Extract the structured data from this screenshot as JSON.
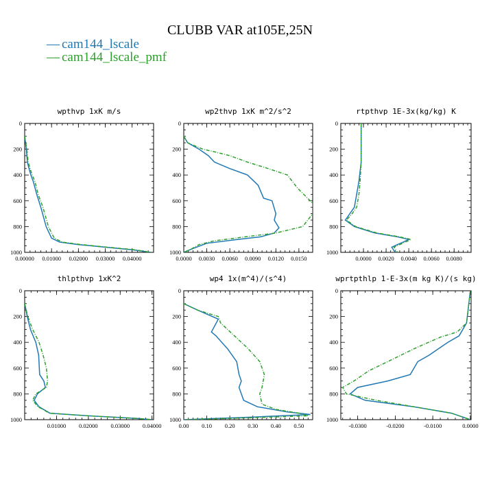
{
  "title": "CLUBB VAR at105E,25N",
  "colors": {
    "blue": "#1f77b4",
    "green": "#2ca02c"
  },
  "legend": [
    {
      "marker": "—",
      "label": "cam144_lscale",
      "color": "#1f77b4",
      "dashed": false
    },
    {
      "marker": "—",
      "label": "cam144_lscale_pmf",
      "color": "#2ca02c",
      "dashed": true
    }
  ],
  "chart_data": [
    {
      "type": "line",
      "title": "wpthvp  1xK m/s",
      "xlim": [
        0,
        0.048
      ],
      "ylim": [
        1000,
        0
      ],
      "xticks": [
        0,
        0.01,
        0.02,
        0.03,
        0.04
      ],
      "xtick_labels": [
        "0.00000",
        "0.01000",
        "0.02000",
        "0.03000",
        "0.04000"
      ],
      "yticks": [
        0,
        200,
        400,
        600,
        800,
        1000
      ],
      "ytick_labels": [
        "0",
        "200",
        "400",
        "600",
        "800",
        "1000"
      ],
      "series": [
        {
          "name": "cam144_lscale",
          "x": [
            0,
            0.0006,
            0.001,
            0.0016,
            0.0023,
            0.0032,
            0.0045,
            0.006,
            0.008,
            0.01,
            0.013,
            0.02,
            0.03,
            0.04,
            0.047
          ],
          "y": [
            100,
            200,
            300,
            350,
            400,
            450,
            550,
            650,
            800,
            890,
            920,
            940,
            960,
            980,
            1000
          ]
        },
        {
          "name": "cam144_lscale_pmf",
          "x": [
            0,
            0.0008,
            0.0013,
            0.002,
            0.0028,
            0.0038,
            0.005,
            0.0068,
            0.0088,
            0.011,
            0.014,
            0.021,
            0.031,
            0.041,
            0.047
          ],
          "y": [
            100,
            200,
            300,
            350,
            400,
            450,
            550,
            650,
            800,
            890,
            920,
            940,
            960,
            980,
            1000
          ]
        }
      ]
    },
    {
      "type": "line",
      "title": "wp2thvp  1xK m^2/s^2",
      "xlim": [
        0,
        0.0168
      ],
      "ylim": [
        1000,
        0
      ],
      "xticks": [
        0,
        0.003,
        0.006,
        0.009,
        0.012,
        0.015
      ],
      "xtick_labels": [
        "0.0000",
        "0.0030",
        "0.0060",
        "0.0090",
        "0.0120",
        "0.0150"
      ],
      "yticks": [
        0,
        200,
        400,
        600,
        800,
        1000
      ],
      "ytick_labels": [
        "0",
        "200",
        "400",
        "600",
        "800",
        "1000"
      ],
      "series": [
        {
          "name": "cam144_lscale",
          "x": [
            0,
            0.0005,
            0.002,
            0.0032,
            0.004,
            0.006,
            0.0083,
            0.0097,
            0.0104,
            0.0115,
            0.012,
            0.0118,
            0.0124,
            0.0118,
            0.01,
            0.007,
            0.003,
            0.0012,
            0
          ],
          "y": [
            100,
            150,
            200,
            250,
            300,
            350,
            400,
            480,
            580,
            600,
            700,
            750,
            810,
            850,
            880,
            900,
            930,
            970,
            1000
          ]
        },
        {
          "name": "cam144_lscale_pmf",
          "x": [
            0,
            0.0005,
            0.0025,
            0.004,
            0.006,
            0.0083,
            0.011,
            0.0135,
            0.0148,
            0.0168,
            0.0168,
            0.0155,
            0.012,
            0.008,
            0.004,
            0.002,
            0.0008,
            0
          ],
          "y": [
            100,
            150,
            200,
            220,
            250,
            300,
            350,
            400,
            500,
            620,
            700,
            800,
            850,
            880,
            910,
            940,
            980,
            1000
          ]
        }
      ]
    },
    {
      "type": "line",
      "title": "rtpthvp  1E-3x(kg/kg) K",
      "xlim": [
        -0.002,
        0.0095
      ],
      "ylim": [
        1000,
        0
      ],
      "xticks": [
        0,
        0.002,
        0.004,
        0.006,
        0.008
      ],
      "xtick_labels": [
        "0.0000",
        "0.0020",
        "0.0040",
        "0.0060",
        "0.0080"
      ],
      "yticks": [
        0,
        200,
        400,
        600,
        800,
        1000
      ],
      "ytick_labels": [
        "0",
        "200",
        "400",
        "600",
        "800",
        "1000"
      ],
      "series": [
        {
          "name": "cam144_lscale",
          "x": [
            -0.0002,
            -0.0002,
            -0.0004,
            -0.0006,
            -0.0008,
            -0.0012,
            -0.0016,
            -0.0008,
            0.001,
            0.003,
            0.004,
            0.0035,
            0.003,
            0.0025,
            0.0028
          ],
          "y": [
            0,
            300,
            450,
            550,
            650,
            700,
            750,
            800,
            850,
            880,
            900,
            920,
            940,
            960,
            1000
          ]
        },
        {
          "name": "cam144_lscale_pmf",
          "x": [
            -0.0002,
            -0.0002,
            -0.0003,
            -0.0004,
            -0.0006,
            -0.001,
            -0.0015,
            -0.0007,
            0.0012,
            0.0032,
            0.0042,
            0.0037,
            0.0032,
            0.0027,
            0.003
          ],
          "y": [
            0,
            300,
            450,
            550,
            650,
            700,
            750,
            800,
            850,
            880,
            900,
            920,
            940,
            960,
            1000
          ]
        }
      ]
    },
    {
      "type": "line",
      "title": "thlpthvp  1xK^2",
      "xlim": [
        0,
        0.0405
      ],
      "ylim": [
        1000,
        0
      ],
      "xticks": [
        0.01,
        0.02,
        0.03,
        0.04
      ],
      "xtick_labels": [
        "0.01000",
        "0.02000",
        "0.03000",
        "0.04000"
      ],
      "yticks": [
        0,
        200,
        400,
        600,
        800,
        1000
      ],
      "ytick_labels": [
        "0",
        "200",
        "400",
        "600",
        "800",
        "1000"
      ],
      "series": [
        {
          "name": "cam144_lscale",
          "x": [
            0,
            0.0008,
            0.0018,
            0.0035,
            0.0044,
            0.0047,
            0.006,
            0.0065,
            0.004,
            0.003,
            0.0045,
            0.008,
            0.02,
            0.035,
            0.04
          ],
          "y": [
            100,
            200,
            300,
            400,
            500,
            650,
            700,
            750,
            800,
            850,
            900,
            950,
            970,
            990,
            1000
          ]
        },
        {
          "name": "cam144_lscale_pmf",
          "x": [
            0,
            0.001,
            0.0025,
            0.0045,
            0.0058,
            0.0068,
            0.0072,
            0.0068,
            0.0035,
            0.0025,
            0.0042,
            0.0078,
            0.02,
            0.035,
            0.04
          ],
          "y": [
            100,
            200,
            300,
            400,
            500,
            600,
            700,
            750,
            800,
            850,
            900,
            950,
            970,
            990,
            1000
          ]
        }
      ]
    },
    {
      "type": "line",
      "title": "wp4  1x(m^4)/(s^4)",
      "xlim": [
        0,
        0.56
      ],
      "ylim": [
        1000,
        0
      ],
      "xticks": [
        0,
        0.1,
        0.2,
        0.3,
        0.4,
        0.5
      ],
      "xtick_labels": [
        "0.00",
        "0.10",
        "0.20",
        "0.30",
        "0.40",
        "0.50"
      ],
      "yticks": [
        0,
        200,
        400,
        600,
        800,
        1000
      ],
      "ytick_labels": [
        "0",
        "200",
        "400",
        "600",
        "800",
        "1000"
      ],
      "series": [
        {
          "name": "cam144_lscale",
          "x": [
            0,
            0.06,
            0.15,
            0.12,
            0.14,
            0.19,
            0.23,
            0.24,
            0.25,
            0.24,
            0.26,
            0.32,
            0.45,
            0.55,
            0.3,
            0
          ],
          "y": [
            100,
            150,
            220,
            320,
            350,
            450,
            550,
            650,
            700,
            750,
            850,
            900,
            940,
            960,
            980,
            1000
          ]
        },
        {
          "name": "cam144_lscale_pmf",
          "x": [
            0,
            0.06,
            0.15,
            0.16,
            0.22,
            0.28,
            0.33,
            0.35,
            0.34,
            0.33,
            0.34,
            0.4,
            0.5,
            0.54,
            0.3,
            0
          ],
          "y": [
            100,
            150,
            200,
            250,
            350,
            450,
            550,
            650,
            750,
            800,
            880,
            920,
            950,
            970,
            985,
            1000
          ]
        }
      ]
    },
    {
      "type": "line",
      "title": "wprtpthlp  1-E-3x(m kg K)/(s kg)",
      "xlim": [
        -0.0345,
        0.0002
      ],
      "ylim": [
        1000,
        0
      ],
      "xticks": [
        -0.03,
        -0.02,
        -0.01,
        0
      ],
      "xtick_labels": [
        "-0.0300",
        "-0.0200",
        "-0.0100",
        "0.0000"
      ],
      "yticks": [
        0,
        200,
        400,
        600,
        800,
        1000
      ],
      "ytick_labels": [
        "0",
        "200",
        "400",
        "600",
        "800",
        "1000"
      ],
      "series": [
        {
          "name": "cam144_lscale",
          "x": [
            0,
            -0.001,
            -0.003,
            -0.006,
            -0.011,
            -0.014,
            -0.016,
            -0.022,
            -0.03,
            -0.032,
            -0.028,
            -0.015,
            -0.005,
            0
          ],
          "y": [
            0,
            250,
            350,
            400,
            500,
            550,
            650,
            700,
            750,
            800,
            850,
            900,
            950,
            1000
          ]
        },
        {
          "name": "cam144_lscale_pmf",
          "x": [
            0,
            -0.001,
            -0.0035,
            -0.008,
            -0.015,
            -0.022,
            -0.027,
            -0.031,
            -0.034,
            -0.033,
            -0.025,
            -0.015,
            -0.005,
            0
          ],
          "y": [
            0,
            250,
            320,
            360,
            450,
            550,
            620,
            700,
            750,
            800,
            850,
            900,
            950,
            1000
          ]
        }
      ]
    }
  ]
}
